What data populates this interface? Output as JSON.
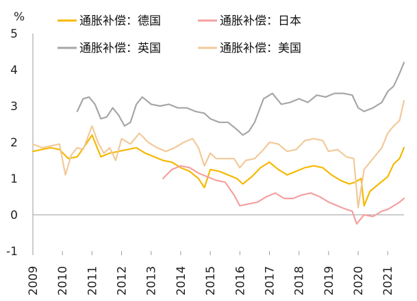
{
  "chart_data": {
    "type": "line",
    "title": "",
    "xlabel": "",
    "ylabel": "%",
    "ylim": [
      -1,
      5
    ],
    "xlim": [
      2009.0,
      2021.55
    ],
    "y_ticks": [
      "-1",
      "0",
      "1",
      "2",
      "3",
      "4",
      "5"
    ],
    "x_ticks": [
      "2009",
      "2010",
      "2011",
      "2012",
      "2013",
      "2014",
      "2015",
      "2016",
      "2017",
      "2018",
      "2019",
      "2020",
      "2021"
    ],
    "grid": false,
    "legend_placement": "top",
    "series": [
      {
        "name": "通胀补偿：德国",
        "color": "#F5B800",
        "x": [
          2009.0,
          2009.3,
          2009.6,
          2009.9,
          2010.2,
          2010.5,
          2010.8,
          2011.0,
          2011.3,
          2011.6,
          2011.9,
          2012.2,
          2012.5,
          2012.8,
          2013.1,
          2013.4,
          2013.7,
          2014.0,
          2014.3,
          2014.6,
          2014.8,
          2015.0,
          2015.3,
          2015.6,
          2015.9,
          2016.1,
          2016.4,
          2016.7,
          2017.0,
          2017.3,
          2017.6,
          2017.9,
          2018.2,
          2018.5,
          2018.8,
          2019.1,
          2019.4,
          2019.7,
          2019.9,
          2020.1,
          2020.2,
          2020.4,
          2020.7,
          2021.0,
          2021.2,
          2021.4,
          2021.55
        ],
        "y": [
          1.75,
          1.8,
          1.85,
          1.8,
          1.55,
          1.6,
          1.95,
          2.2,
          1.6,
          1.7,
          1.75,
          1.8,
          1.85,
          1.7,
          1.6,
          1.5,
          1.45,
          1.3,
          1.2,
          1.0,
          0.75,
          1.25,
          1.2,
          1.1,
          1.0,
          0.85,
          1.05,
          1.3,
          1.45,
          1.25,
          1.1,
          1.2,
          1.3,
          1.35,
          1.3,
          1.1,
          0.95,
          0.85,
          0.9,
          1.0,
          0.25,
          0.65,
          0.85,
          1.05,
          1.4,
          1.55,
          1.85
        ]
      },
      {
        "name": "通胀补偿：日本",
        "color": "#F4A0A0",
        "x": [
          2013.4,
          2013.7,
          2014.0,
          2014.3,
          2014.6,
          2014.9,
          2015.2,
          2015.5,
          2015.8,
          2016.0,
          2016.3,
          2016.6,
          2016.9,
          2017.2,
          2017.5,
          2017.8,
          2018.1,
          2018.4,
          2018.7,
          2019.0,
          2019.3,
          2019.6,
          2019.8,
          2019.95,
          2020.2,
          2020.5,
          2020.8,
          2021.0,
          2021.2,
          2021.4,
          2021.55
        ],
        "y": [
          1.0,
          1.25,
          1.35,
          1.3,
          1.15,
          1.05,
          0.95,
          0.9,
          0.55,
          0.25,
          0.3,
          0.35,
          0.5,
          0.6,
          0.45,
          0.45,
          0.55,
          0.6,
          0.5,
          0.35,
          0.25,
          0.15,
          0.1,
          -0.25,
          0.0,
          -0.05,
          0.1,
          0.15,
          0.25,
          0.35,
          0.45
        ]
      },
      {
        "name": "通胀补偿：英国",
        "color": "#A6A6A6",
        "x": [
          2010.5,
          2010.7,
          2010.9,
          2011.1,
          2011.3,
          2011.5,
          2011.7,
          2011.9,
          2012.1,
          2012.3,
          2012.5,
          2012.7,
          2013.0,
          2013.3,
          2013.6,
          2013.9,
          2014.2,
          2014.5,
          2014.8,
          2015.0,
          2015.3,
          2015.6,
          2015.9,
          2016.1,
          2016.3,
          2016.5,
          2016.8,
          2017.1,
          2017.4,
          2017.7,
          2018.0,
          2018.3,
          2018.6,
          2018.9,
          2019.2,
          2019.5,
          2019.8,
          2020.0,
          2020.2,
          2020.5,
          2020.8,
          2021.0,
          2021.2,
          2021.4,
          2021.55
        ],
        "y": [
          2.85,
          3.2,
          3.25,
          3.05,
          2.65,
          2.7,
          2.95,
          2.75,
          2.45,
          2.55,
          3.05,
          3.25,
          3.05,
          3.0,
          3.05,
          2.95,
          2.95,
          2.85,
          2.8,
          2.65,
          2.55,
          2.55,
          2.35,
          2.2,
          2.3,
          2.55,
          3.2,
          3.35,
          3.05,
          3.1,
          3.2,
          3.1,
          3.3,
          3.25,
          3.35,
          3.35,
          3.3,
          2.95,
          2.85,
          2.95,
          3.1,
          3.4,
          3.55,
          3.9,
          4.2
        ]
      },
      {
        "name": "通胀补偿：美国",
        "color": "#F2C999",
        "x": [
          2009.0,
          2009.3,
          2009.6,
          2009.9,
          2010.1,
          2010.3,
          2010.5,
          2010.7,
          2011.0,
          2011.2,
          2011.4,
          2011.6,
          2011.8,
          2012.0,
          2012.3,
          2012.6,
          2012.9,
          2013.2,
          2013.5,
          2013.8,
          2014.1,
          2014.4,
          2014.6,
          2014.8,
          2015.0,
          2015.2,
          2015.5,
          2015.8,
          2016.0,
          2016.2,
          2016.5,
          2016.8,
          2017.0,
          2017.3,
          2017.6,
          2017.9,
          2018.2,
          2018.5,
          2018.8,
          2019.0,
          2019.3,
          2019.6,
          2019.85,
          2020.0,
          2020.2,
          2020.5,
          2020.8,
          2021.0,
          2021.2,
          2021.4,
          2021.55
        ],
        "y": [
          1.95,
          1.85,
          1.9,
          1.95,
          1.1,
          1.65,
          1.85,
          1.8,
          2.45,
          2.0,
          1.7,
          1.85,
          1.5,
          2.1,
          1.95,
          2.25,
          2.0,
          1.85,
          1.75,
          1.85,
          2.0,
          2.1,
          1.85,
          1.35,
          1.7,
          1.55,
          1.55,
          1.55,
          1.3,
          1.5,
          1.55,
          1.8,
          2.0,
          1.95,
          1.75,
          1.8,
          2.05,
          2.1,
          2.05,
          1.75,
          1.8,
          1.6,
          1.55,
          0.2,
          1.25,
          1.55,
          1.85,
          2.25,
          2.45,
          2.6,
          3.15
        ]
      }
    ]
  }
}
